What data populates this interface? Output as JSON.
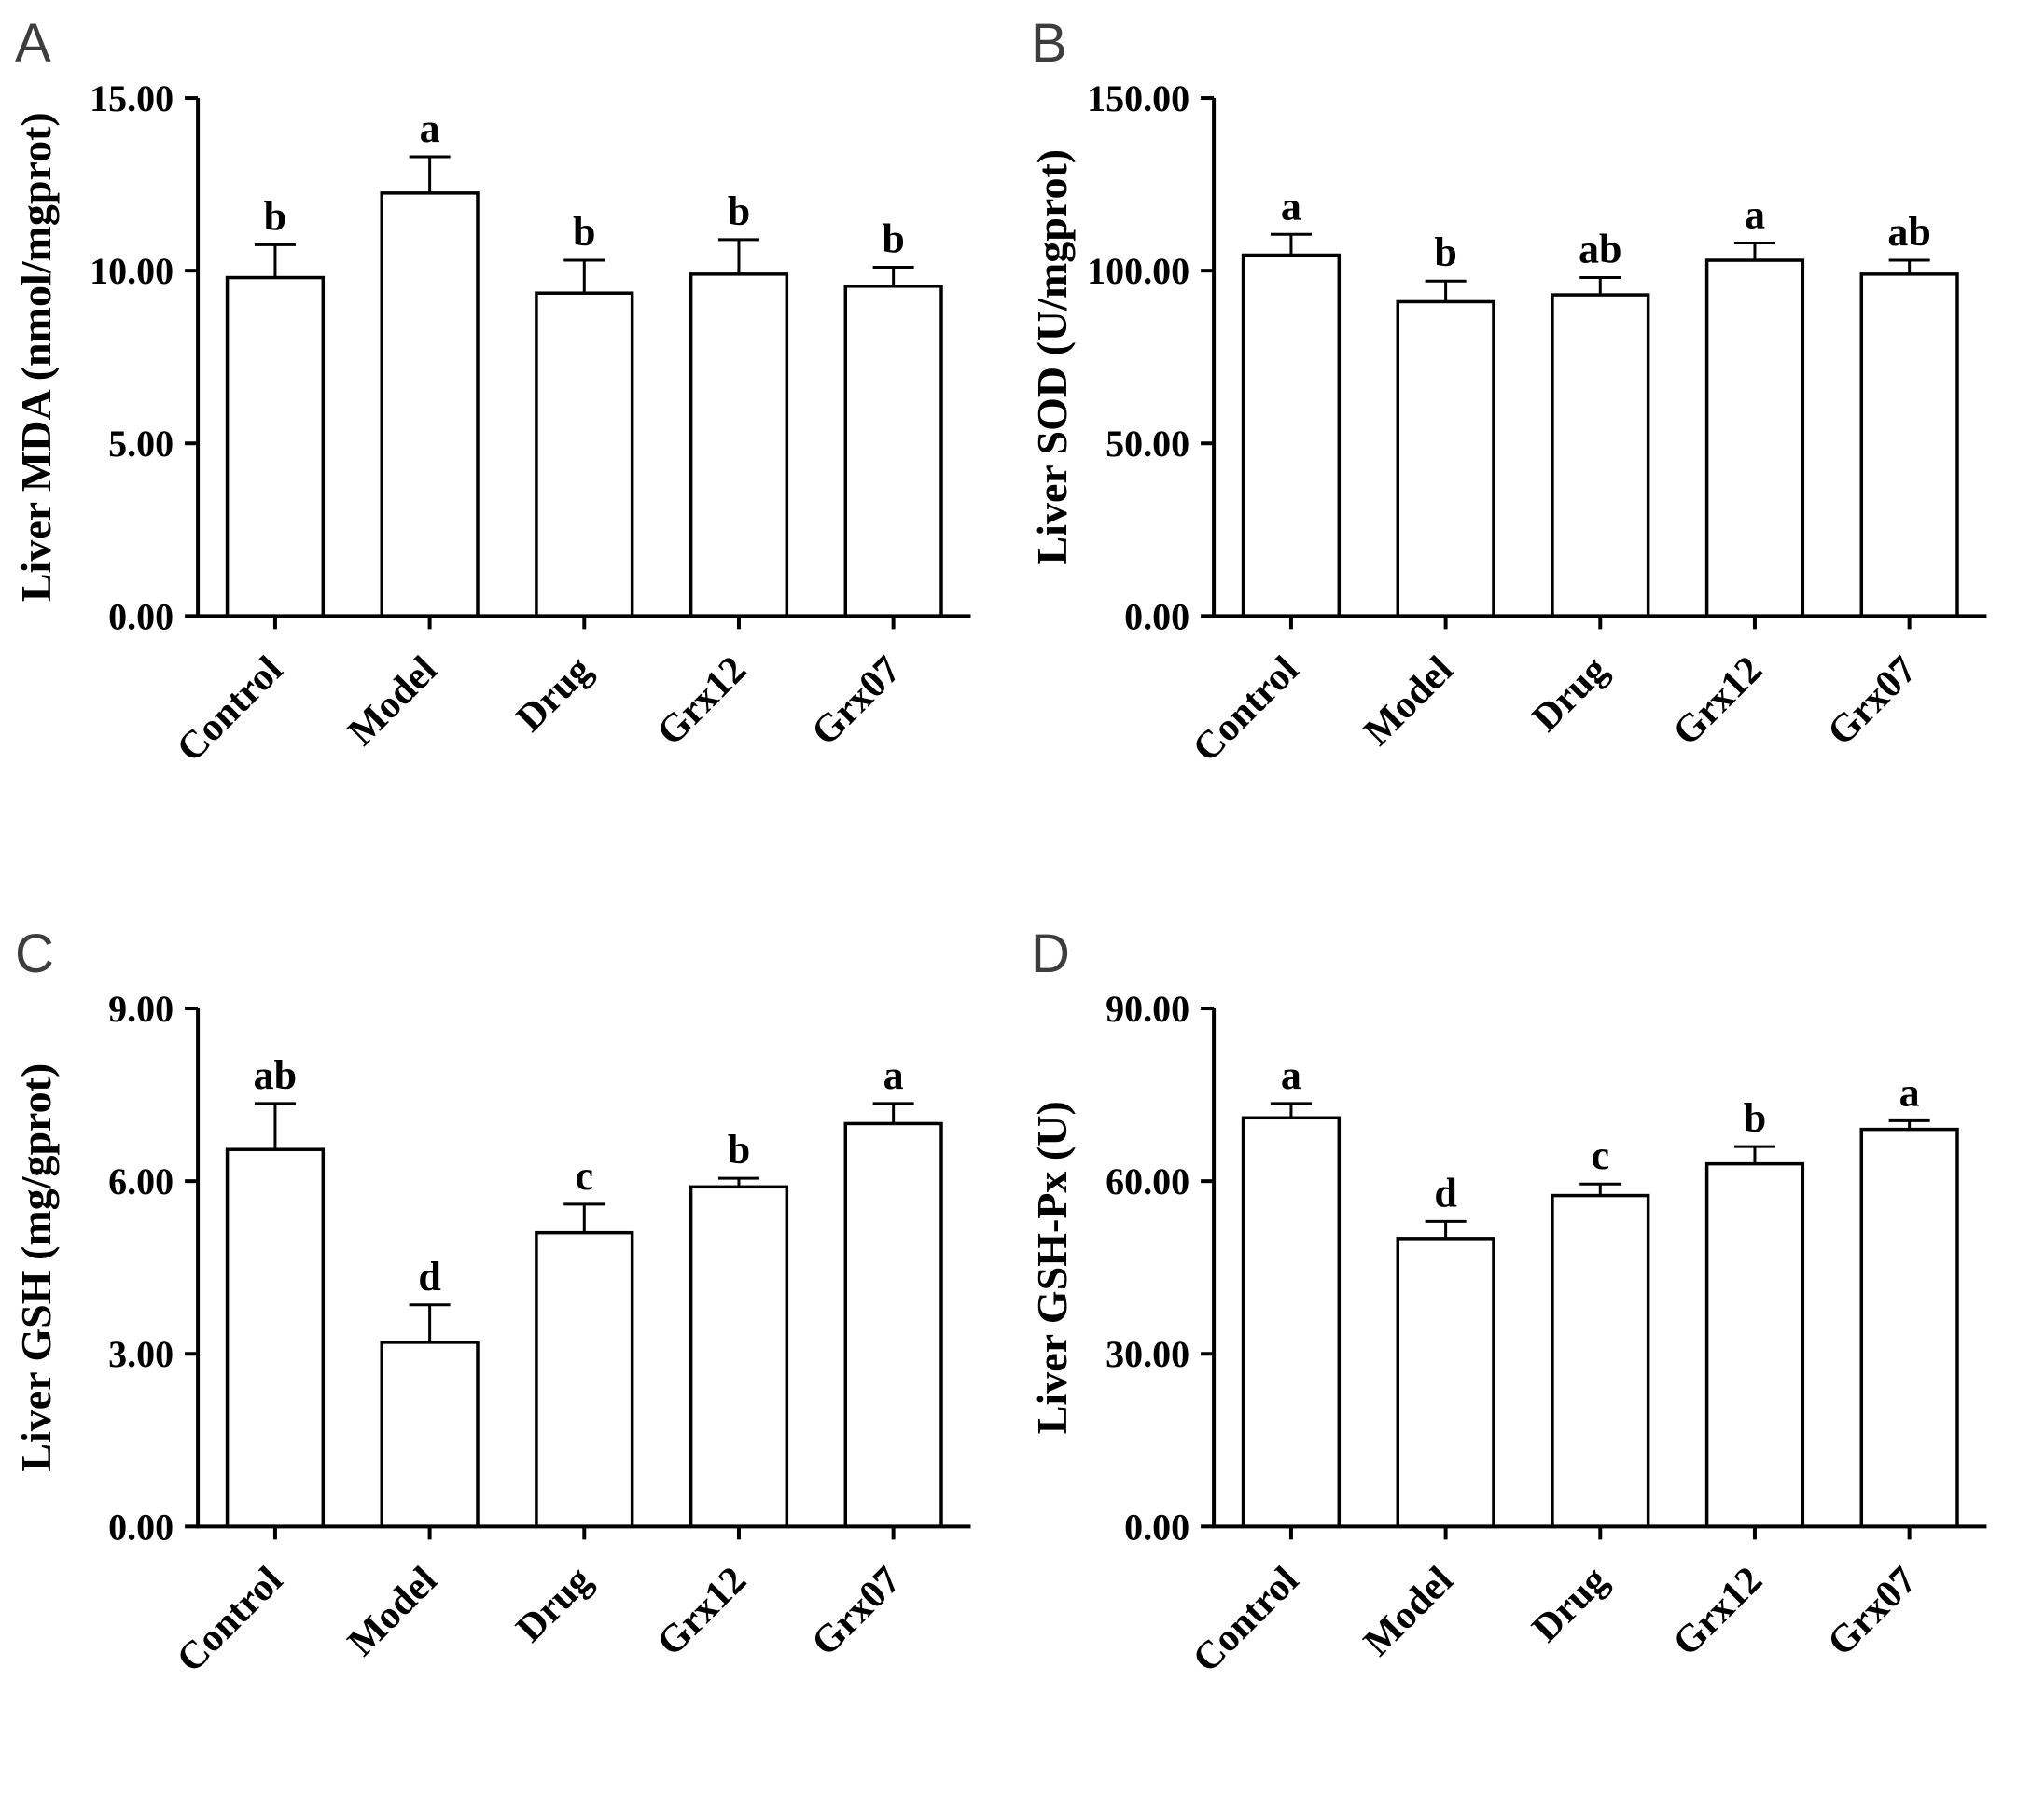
{
  "figure": {
    "background_color": "#ffffff",
    "bar_fill_color": "#ffffff",
    "bar_stroke_color": "#000000",
    "panel_letter_color": "#3d3d3d"
  },
  "chart_data": [
    {
      "type": "bar",
      "panel_label": "A",
      "ylabel": "Liver MDA (nmol/mgprot)",
      "xlabel": "",
      "ylim": [
        0,
        15
      ],
      "ytick_values": [
        0,
        5,
        10,
        15
      ],
      "ytick_labels": [
        "0.00",
        "5.00",
        "10.00",
        "15.00"
      ],
      "categories": [
        "Control",
        "Model",
        "Drug",
        "Grx12",
        "Grx07"
      ],
      "values": [
        9.8,
        12.25,
        9.35,
        9.9,
        9.55
      ],
      "errors": [
        0.95,
        1.05,
        0.95,
        1.0,
        0.55
      ],
      "sig_letters": [
        "b",
        "a",
        "b",
        "b",
        "b"
      ],
      "grid": false,
      "legend": false
    },
    {
      "type": "bar",
      "panel_label": "B",
      "ylabel": "Liver SOD (U/mgprot)",
      "xlabel": "",
      "ylim": [
        0,
        150
      ],
      "ytick_values": [
        0,
        50,
        100,
        150
      ],
      "ytick_labels": [
        "0.00",
        "50.00",
        "100.00",
        "150.00"
      ],
      "categories": [
        "Control",
        "Model",
        "Drug",
        "Grx12",
        "Grx07"
      ],
      "values": [
        104.5,
        91,
        93,
        103,
        99
      ],
      "errors": [
        6,
        6,
        5,
        5,
        4
      ],
      "sig_letters": [
        "a",
        "b",
        "ab",
        "a",
        "ab"
      ],
      "grid": false,
      "legend": false
    },
    {
      "type": "bar",
      "panel_label": "C",
      "ylabel": "Liver GSH (mg/gprot)",
      "xlabel": "",
      "ylim": [
        0,
        9
      ],
      "ytick_values": [
        0,
        3,
        6,
        9
      ],
      "ytick_labels": [
        "0.00",
        "3.00",
        "6.00",
        "9.00"
      ],
      "categories": [
        "Control",
        "Model",
        "Drug",
        "Grx12",
        "Grx07"
      ],
      "values": [
        6.55,
        3.2,
        5.1,
        5.9,
        7.0
      ],
      "errors": [
        0.8,
        0.65,
        0.5,
        0.15,
        0.35
      ],
      "sig_letters": [
        "ab",
        "d",
        "c",
        "b",
        "a"
      ],
      "grid": false,
      "legend": false
    },
    {
      "type": "bar",
      "panel_label": "D",
      "ylabel": "Liver GSH-Px (U)",
      "xlabel": "",
      "ylim": [
        0,
        90
      ],
      "ytick_values": [
        0,
        30,
        60,
        90
      ],
      "ytick_labels": [
        "0.00",
        "30.00",
        "60.00",
        "90.00"
      ],
      "categories": [
        "Control",
        "Model",
        "Drug",
        "Grx12",
        "Grx07"
      ],
      "values": [
        71,
        50,
        57.5,
        63,
        69
      ],
      "errors": [
        2.5,
        3.0,
        2.0,
        3.0,
        1.5
      ],
      "sig_letters": [
        "a",
        "d",
        "c",
        "b",
        "a"
      ],
      "grid": false,
      "legend": false
    }
  ]
}
